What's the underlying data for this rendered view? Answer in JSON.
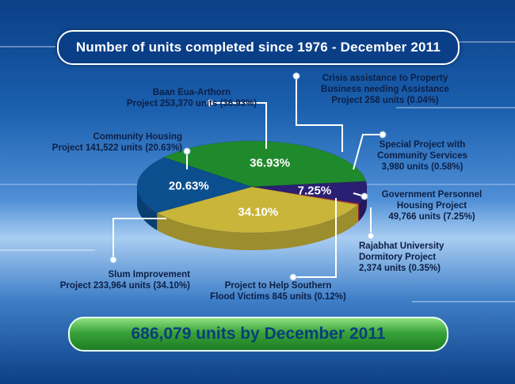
{
  "title": "Number of units completed since 1976 - December 2011",
  "total": "686,079 units by December 2011",
  "chart_data": {
    "type": "pie",
    "title": "Number of units completed since 1976 - December 2011",
    "slices": [
      {
        "label": "Baan Eua-Arthorn Project",
        "units": 253370,
        "percent": 36.93,
        "color": "#1f8a2c",
        "show_pct": "36.93%"
      },
      {
        "label": "Crisis assistance to Property Business needing Assistance Project",
        "units": 258,
        "percent": 0.04,
        "color": "#b81e1e",
        "show_pct": ""
      },
      {
        "label": "Special Project with Community Services",
        "units": 3980,
        "percent": 0.58,
        "color": "#2a2070",
        "show_pct": ""
      },
      {
        "label": "Government Personnel Housing Project",
        "units": 49766,
        "percent": 7.25,
        "color": "#2b1f73",
        "show_pct": "7.25%"
      },
      {
        "label": "Rajabhat University Dormitory Project",
        "units": 2374,
        "percent": 0.35,
        "color": "#c9252a",
        "show_pct": ""
      },
      {
        "label": "Project to Help Southern Flood Victims",
        "units": 845,
        "percent": 0.12,
        "color": "#d6c23a",
        "show_pct": ""
      },
      {
        "label": "Slum Improvement Project",
        "units": 233964,
        "percent": 34.1,
        "color": "#c8b53a",
        "show_pct": "34.10%"
      },
      {
        "label": "Community Housing Project",
        "units": 141522,
        "percent": 20.63,
        "color": "#0c4f8f",
        "show_pct": "20.63%"
      }
    ],
    "callouts": [
      "Baan Eua-Arthorn\nProject 253,370 units (36.93%)",
      "Crisis assistance to Property\nBusiness needing Assistance\nProject  258 units (0.04%)",
      "Special Project with\nCommunity Services\n3,980 units (0.58%)",
      "Government Personnel\nHousing Project\n49,766 units (7.25%)",
      "Rajabhat University\nDormitory Project\n2,374 units (0.35%)",
      "Project to Help Southern\nFlood Victims 845 units (0.12%)",
      "Slum Improvement\nProject 233,964 units (34.10%)",
      "Community Housing\nProject 141,522 units (20.63%)"
    ]
  }
}
